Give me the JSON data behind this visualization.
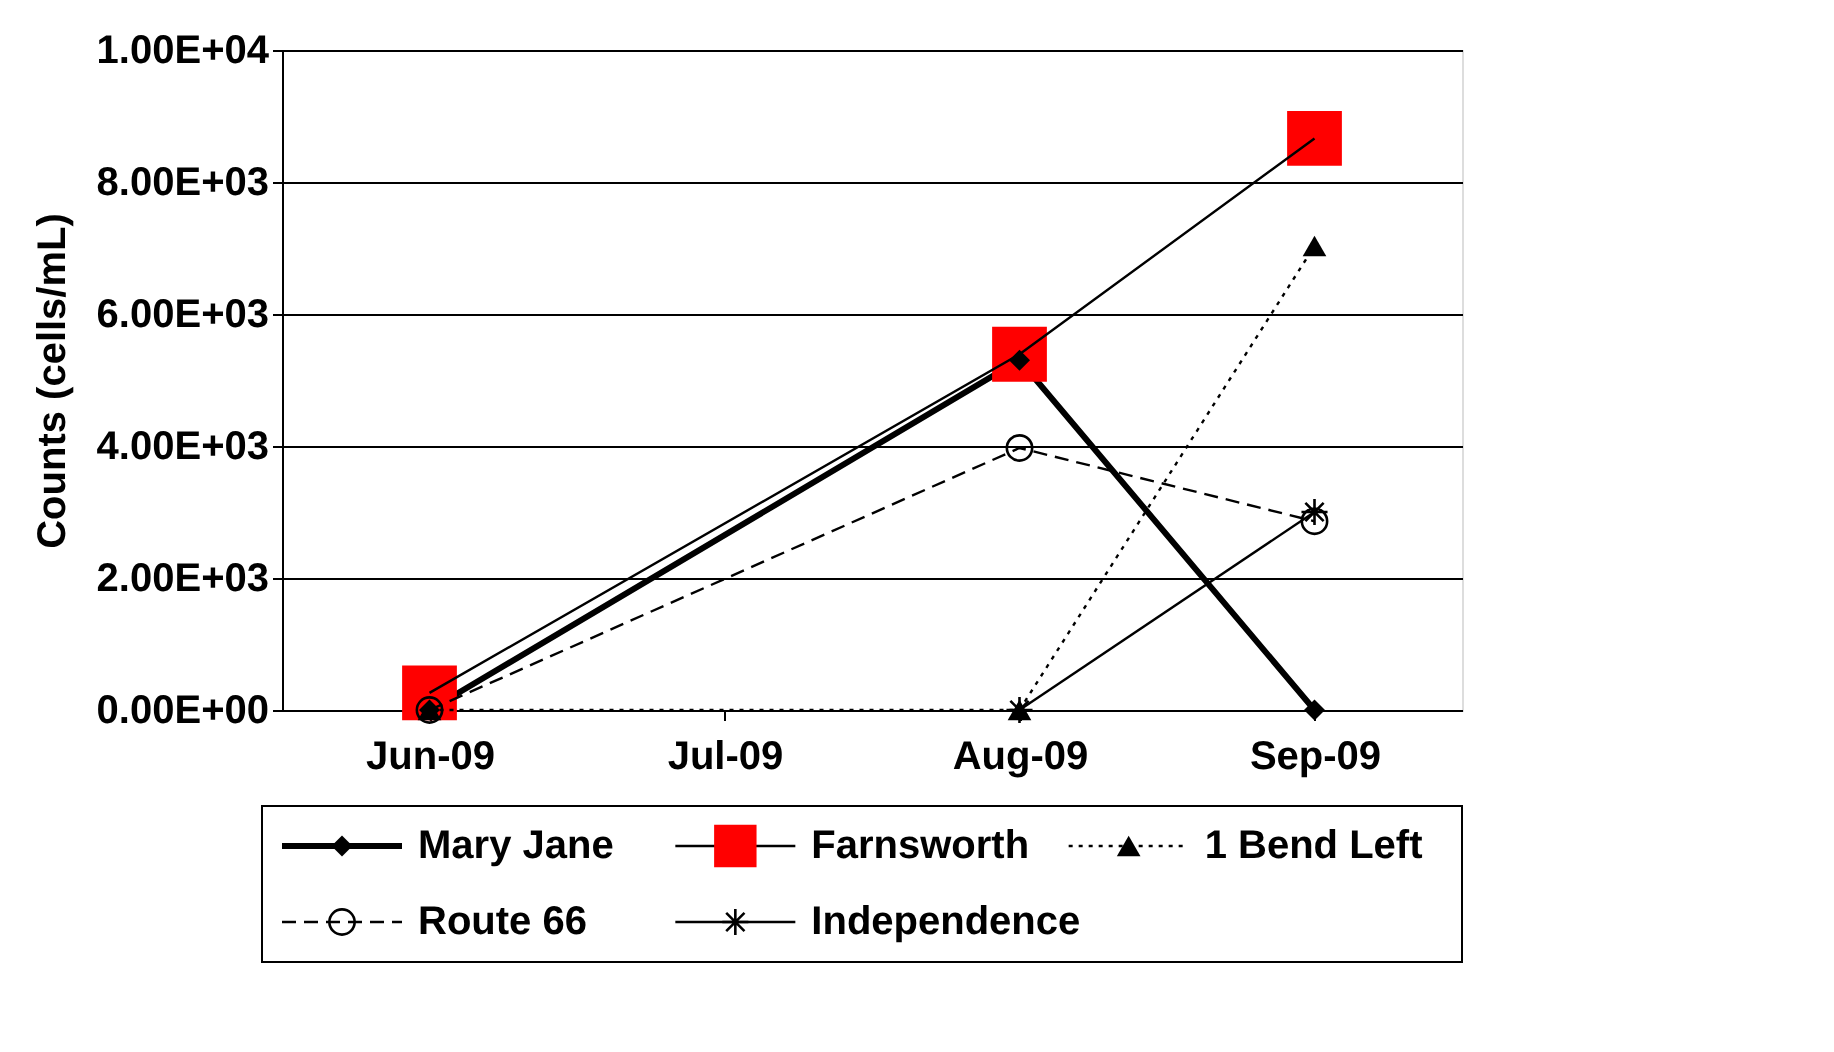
{
  "chart_data": {
    "type": "line",
    "ylabel": "Counts (cells/mL)",
    "categories": [
      "Jun-09",
      "Jul-09",
      "Aug-09",
      "Sep-09"
    ],
    "series": [
      {
        "name": "Mary Jane",
        "color": "#000000",
        "marker": "diamond",
        "line_style": "solid",
        "values": [
          0,
          null,
          5300,
          0
        ]
      },
      {
        "name": "Farnsworth",
        "color": "#ff0000",
        "marker": "square",
        "line_style": "solid",
        "values": [
          260,
          null,
          5390,
          8660
        ]
      },
      {
        "name": "1 Bend Left",
        "color": "#000000",
        "marker": "triangle",
        "line_style": "dotted",
        "values": [
          0,
          null,
          0,
          7030
        ]
      },
      {
        "name": "Route 66",
        "color": "#000000",
        "marker": "circle",
        "line_style": "dashed",
        "values": [
          0,
          null,
          3970,
          2860
        ]
      },
      {
        "name": "Independence",
        "color": "#000000",
        "marker": "cross",
        "line_style": "solid",
        "values": [
          null,
          null,
          0,
          3000
        ]
      }
    ],
    "ylim": [
      0,
      10000
    ],
    "yticks": [
      {
        "value": 0,
        "label": "0.00E+00"
      },
      {
        "value": 2000,
        "label": "2.00E+03"
      },
      {
        "value": 4000,
        "label": "4.00E+03"
      },
      {
        "value": 6000,
        "label": "6.00E+03"
      },
      {
        "value": 8000,
        "label": "8.00E+03"
      },
      {
        "value": 10000,
        "label": "1.00E+04"
      }
    ],
    "grid": "y",
    "legend": "bottom"
  }
}
